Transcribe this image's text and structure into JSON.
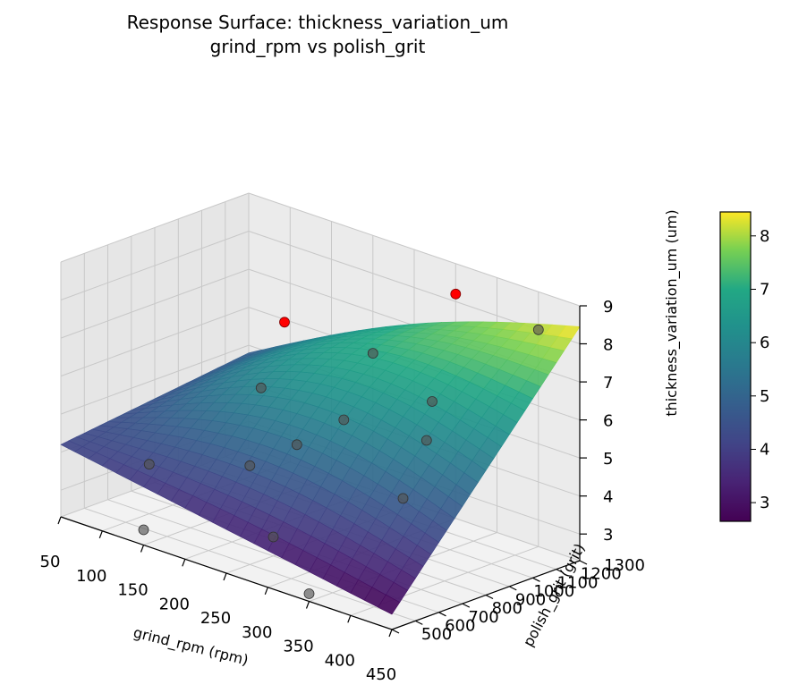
{
  "chart_data": {
    "type": "surface3d",
    "title": "Response Surface: thickness_variation_um",
    "subtitle": "grind_rpm vs polish_grit",
    "xlabel": "grind_rpm (rpm)",
    "ylabel": "polish_grit (grit)",
    "zlabel": "thickness_variation_um (um)",
    "xlim": [
      50,
      450
    ],
    "ylim": [
      500,
      1300
    ],
    "zlim": [
      2.3,
      9
    ],
    "x_ticks": [
      "50",
      "100",
      "150",
      "200",
      "250",
      "300",
      "350",
      "400",
      "450"
    ],
    "y_ticks": [
      "500",
      "600",
      "700",
      "800",
      "900",
      "1000",
      "1100",
      "1200",
      "1300"
    ],
    "z_ticks": [
      "3",
      "4",
      "5",
      "6",
      "7",
      "8",
      "9"
    ],
    "colorbar": {
      "colormap": "viridis",
      "min": 2.65,
      "max": 8.45,
      "ticks": [
        "3",
        "4",
        "5",
        "6",
        "7",
        "8"
      ]
    },
    "surface_corners": [
      {
        "grind_rpm": 50,
        "polish_grit": 500,
        "value": 4.2
      },
      {
        "grind_rpm": 450,
        "polish_grit": 500,
        "value": 2.7
      },
      {
        "grind_rpm": 50,
        "polish_grit": 1300,
        "value": 4.8
      },
      {
        "grind_rpm": 450,
        "polish_grit": 1300,
        "value": 8.45
      }
    ],
    "points": [
      {
        "grind_rpm": 100,
        "polish_grit": 700,
        "value": 3.6,
        "color": "#555555"
      },
      {
        "grind_rpm": 150,
        "polish_grit": 1000,
        "value": 5.3,
        "color": "#555555"
      },
      {
        "grind_rpm": 200,
        "polish_grit": 1300,
        "value": 5.9,
        "color": "#555555"
      },
      {
        "grind_rpm": 250,
        "polish_grit": 1000,
        "value": 5.2,
        "color": "#555555"
      },
      {
        "grind_rpm": 250,
        "polish_grit": 800,
        "value": 5.0,
        "color": "#555555"
      },
      {
        "grind_rpm": 250,
        "polish_grit": 600,
        "value": 4.9,
        "color": "#555555"
      },
      {
        "grind_rpm": 250,
        "polish_grit": 700,
        "value": 2.8,
        "color": "#555555"
      },
      {
        "grind_rpm": 300,
        "polish_grit": 1200,
        "value": 5.6,
        "color": "#555555"
      },
      {
        "grind_rpm": 350,
        "polish_grit": 1000,
        "value": 5.4,
        "color": "#555555"
      },
      {
        "grind_rpm": 350,
        "polish_grit": 900,
        "value": 4.1,
        "color": "#555555"
      },
      {
        "grind_rpm": 400,
        "polish_grit": 1300,
        "value": 8.0,
        "color": "#555555"
      },
      {
        "grind_rpm": 150,
        "polish_grit": 500,
        "value": 2.7,
        "color": "#555555"
      },
      {
        "grind_rpm": 350,
        "polish_grit": 500,
        "value": 2.5,
        "color": "#555555"
      },
      {
        "grind_rpm": 150,
        "polish_grit": 1100,
        "value": 6.8,
        "color": "#ff0000"
      },
      {
        "grind_rpm": 300,
        "polish_grit": 1300,
        "value": 8.2,
        "color": "#ff0000"
      }
    ]
  }
}
